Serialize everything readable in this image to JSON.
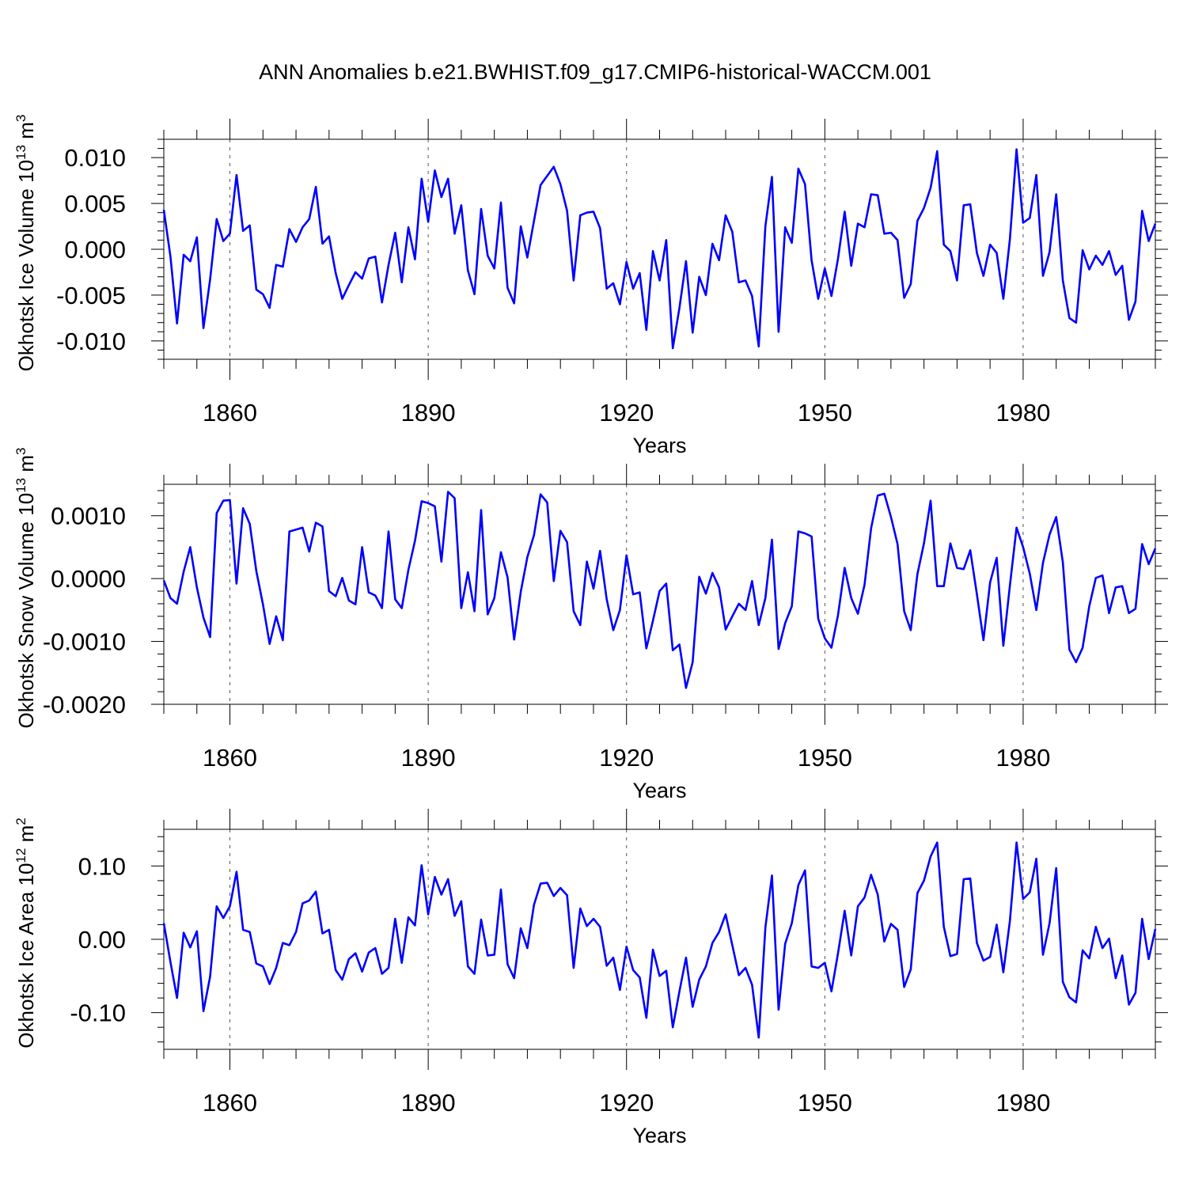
{
  "title": "ANN Anomalies b.e21.BWHIST.f09_g17.CMIP6-historical-WACCM.001",
  "chart_data": [
    {
      "type": "line",
      "ylabel_main": "Okhotsk Ice Volume 10",
      "ylabel_exp": "13",
      "ylabel_unit": "m",
      "ylabel_unit_exp": "3",
      "xlabel": "Years",
      "xlim": [
        1850,
        2000
      ],
      "ylim": [
        -0.012,
        0.012
      ],
      "xticks": [
        1860,
        1890,
        1920,
        1950,
        1980
      ],
      "xtick_labels": [
        "1860",
        "1890",
        "1920",
        "1950",
        "1980"
      ],
      "yticks": [
        -0.01,
        -0.005,
        0.0,
        0.005,
        0.01
      ],
      "ytick_labels": [
        "-0.010",
        "-0.005",
        "0.000",
        "0.005",
        "0.010"
      ],
      "series": [
        {
          "name": "Okhotsk Ice Volume",
          "color": "#0000ff",
          "values": [
            0.0043,
            -0.0008,
            -0.0081,
            -0.0006,
            -0.0013,
            0.0013,
            -0.0086,
            -0.0033,
            0.0033,
            0.0009,
            0.0017,
            0.0081,
            0.002,
            0.0026,
            -0.0044,
            -0.0049,
            -0.0064,
            -0.0017,
            -0.0019,
            0.0022,
            0.0008,
            0.0024,
            0.0033,
            0.0068,
            0.0006,
            0.0014,
            -0.0026,
            -0.0054,
            -0.0039,
            -0.0025,
            -0.0032,
            -0.001,
            -0.0008,
            -0.0058,
            -0.0017,
            0.0018,
            -0.0036,
            0.0024,
            -0.0011,
            0.0077,
            0.003,
            0.0086,
            0.0057,
            0.0077,
            0.0017,
            0.0048,
            -0.0023,
            -0.0049,
            0.0044,
            -0.0007,
            -0.0021,
            0.0051,
            -0.0042,
            -0.0059,
            0.0025,
            -0.0009,
            0.0031,
            0.007,
            0.008,
            0.009,
            0.0071,
            0.0042,
            -0.0034,
            0.0037,
            0.004,
            0.0041,
            0.0023,
            -0.0043,
            -0.0037,
            -0.006,
            -0.0014,
            -0.0043,
            -0.0026,
            -0.0088,
            -0.0002,
            -0.0034,
            0.001,
            -0.0108,
            -0.0064,
            -0.0013,
            -0.0091,
            -0.003,
            -0.005,
            0.0006,
            -0.0012,
            0.0037,
            0.0019,
            -0.0036,
            -0.0034,
            -0.0051,
            -0.0106,
            0.0025,
            0.0079,
            -0.009,
            0.0024,
            0.0007,
            0.0088,
            0.0071,
            -0.0012,
            -0.0054,
            -0.0021,
            -0.0051,
            -0.001,
            0.0041,
            -0.0018,
            0.0028,
            0.0024,
            0.006,
            0.0059,
            0.0017,
            0.0018,
            0.001,
            -0.0053,
            -0.0038,
            0.0031,
            0.0045,
            0.0067,
            0.0107,
            0.0005,
            -0.0002,
            -0.0034,
            0.0048,
            0.0049,
            -0.0004,
            -0.0029,
            0.0005,
            -0.0004,
            -0.0054,
            0.0011,
            0.0109,
            0.0029,
            0.0034,
            0.0081,
            -0.0029,
            -0.0003,
            0.006,
            -0.0034,
            -0.0075,
            -0.008,
            -0.0001,
            -0.0022,
            -0.0007,
            -0.0017,
            -0.0002,
            -0.0028,
            -0.0018,
            -0.0077,
            -0.0057,
            0.0042,
            0.0009,
            0.0028
          ]
        }
      ]
    },
    {
      "type": "line",
      "ylabel_main": "Okhotsk Snow Volume 10",
      "ylabel_exp": "13",
      "ylabel_unit": "m",
      "ylabel_unit_exp": "3",
      "xlabel": "Years",
      "xlim": [
        1850,
        2000
      ],
      "ylim": [
        -0.002,
        0.0015
      ],
      "xticks": [
        1860,
        1890,
        1920,
        1950,
        1980
      ],
      "xtick_labels": [
        "1860",
        "1890",
        "1920",
        "1950",
        "1980"
      ],
      "yticks": [
        -0.002,
        -0.001,
        0.0,
        0.001
      ],
      "ytick_labels": [
        "-0.0020",
        "-0.0010",
        "0.0000",
        "0.0010"
      ],
      "series": [
        {
          "name": "Okhotsk Snow Volume",
          "color": "#0000ff",
          "values": [
            -3e-05,
            -0.00031,
            -0.0004,
            0.00011,
            0.0005,
            -0.00014,
            -0.00062,
            -0.00093,
            0.00104,
            0.00124,
            0.00125,
            -8e-05,
            0.00112,
            0.00087,
            0.00012,
            -0.00041,
            -0.00104,
            -0.0006,
            -0.00098,
            0.00075,
            0.00078,
            0.00081,
            0.00043,
            0.00089,
            0.00083,
            -0.0002,
            -0.00028,
            1e-05,
            -0.00035,
            -0.00041,
            0.0005,
            -0.00022,
            -0.00027,
            -0.00047,
            0.00075,
            -0.00033,
            -0.00047,
            0.00014,
            0.0006,
            0.00123,
            0.0012,
            0.00115,
            0.00027,
            0.00138,
            0.00128,
            -0.00047,
            0.0001,
            -0.00052,
            0.00109,
            -0.00057,
            -0.00031,
            0.00042,
            2e-05,
            -0.00097,
            -0.00021,
            0.00034,
            0.00069,
            0.00134,
            0.00121,
            -4e-05,
            0.00076,
            0.00058,
            -0.00052,
            -0.00074,
            0.00027,
            -0.00016,
            0.00044,
            -0.00033,
            -0.00082,
            -0.0005,
            0.00037,
            -0.00025,
            -0.00022,
            -0.00111,
            -0.00067,
            -0.0002,
            -8e-05,
            -0.00114,
            -0.00105,
            -0.00174,
            -0.00133,
            3e-05,
            -0.00024,
            9e-05,
            -0.00014,
            -0.00081,
            -0.0006,
            -0.0004,
            -0.0005,
            -4e-05,
            -0.00074,
            -0.00031,
            0.00062,
            -0.00112,
            -0.00071,
            -0.00044,
            0.00075,
            0.00072,
            0.00067,
            -0.00064,
            -0.00095,
            -0.0011,
            -0.00058,
            0.00017,
            -0.00031,
            -0.00056,
            -0.0001,
            0.0008,
            0.00132,
            0.00135,
            0.00098,
            0.00055,
            -0.00052,
            -0.00082,
            7e-05,
            0.00056,
            0.00124,
            -0.00012,
            -0.00012,
            0.00056,
            0.00017,
            0.00015,
            0.00045,
            -0.00025,
            -0.00098,
            -6e-05,
            0.00033,
            -0.00107,
            -0.00011,
            0.00081,
            0.0005,
            8e-05,
            -0.0005,
            0.00025,
            0.0007,
            0.00098,
            0.00026,
            -0.00113,
            -0.00133,
            -0.0011,
            -0.00044,
            1e-05,
            5e-05,
            -0.00055,
            -0.00014,
            -0.00012,
            -0.00055,
            -0.00048,
            0.00055,
            0.00023,
            0.00048
          ]
        }
      ]
    },
    {
      "type": "line",
      "ylabel_main": "Okhotsk Ice Area 10",
      "ylabel_exp": "12",
      "ylabel_unit": "m",
      "ylabel_unit_exp": "2",
      "xlabel": "Years",
      "xlim": [
        1850,
        2000
      ],
      "ylim": [
        -0.15,
        0.15
      ],
      "xticks": [
        1860,
        1890,
        1920,
        1950,
        1980
      ],
      "xtick_labels": [
        "1860",
        "1890",
        "1920",
        "1950",
        "1980"
      ],
      "yticks": [
        -0.1,
        0.0,
        0.1
      ],
      "ytick_labels": [
        "-0.10",
        "0.00",
        "0.10"
      ],
      "series": [
        {
          "name": "Okhotsk Ice Area",
          "color": "#0000ff",
          "values": [
            0.022,
            -0.031,
            -0.08,
            0.009,
            -0.011,
            0.011,
            -0.098,
            -0.051,
            0.045,
            0.029,
            0.045,
            0.092,
            0.013,
            0.01,
            -0.033,
            -0.037,
            -0.061,
            -0.039,
            -0.005,
            -0.008,
            0.01,
            0.049,
            0.053,
            0.065,
            0.008,
            0.013,
            -0.042,
            -0.055,
            -0.027,
            -0.019,
            -0.044,
            -0.018,
            -0.012,
            -0.047,
            -0.039,
            0.028,
            -0.032,
            0.03,
            0.019,
            0.101,
            0.034,
            0.085,
            0.061,
            0.082,
            0.032,
            0.052,
            -0.037,
            -0.047,
            0.027,
            -0.022,
            -0.021,
            0.068,
            -0.034,
            -0.053,
            0.015,
            -0.012,
            0.047,
            0.076,
            0.077,
            0.059,
            0.07,
            0.06,
            -0.039,
            0.042,
            0.018,
            0.028,
            0.017,
            -0.036,
            -0.025,
            -0.069,
            -0.01,
            -0.042,
            -0.052,
            -0.107,
            -0.014,
            -0.05,
            -0.043,
            -0.12,
            -0.071,
            -0.025,
            -0.092,
            -0.055,
            -0.037,
            -0.005,
            0.01,
            0.034,
            -0.008,
            -0.049,
            -0.039,
            -0.062,
            -0.134,
            0.016,
            0.087,
            -0.096,
            -0.006,
            0.022,
            0.074,
            0.094,
            -0.037,
            -0.039,
            -0.032,
            -0.071,
            -0.019,
            0.039,
            -0.022,
            0.045,
            0.057,
            0.088,
            0.061,
            -0.003,
            0.021,
            0.013,
            -0.065,
            -0.041,
            0.063,
            0.08,
            0.113,
            0.132,
            0.017,
            -0.023,
            -0.02,
            0.082,
            0.083,
            -0.005,
            -0.029,
            -0.024,
            0.02,
            -0.045,
            0.025,
            0.132,
            0.055,
            0.064,
            0.11,
            -0.021,
            0.022,
            0.097,
            -0.058,
            -0.079,
            -0.086,
            -0.015,
            -0.026,
            0.017,
            -0.012,
            0.001,
            -0.053,
            -0.022,
            -0.089,
            -0.073,
            0.028,
            -0.027,
            0.014
          ]
        }
      ]
    }
  ]
}
